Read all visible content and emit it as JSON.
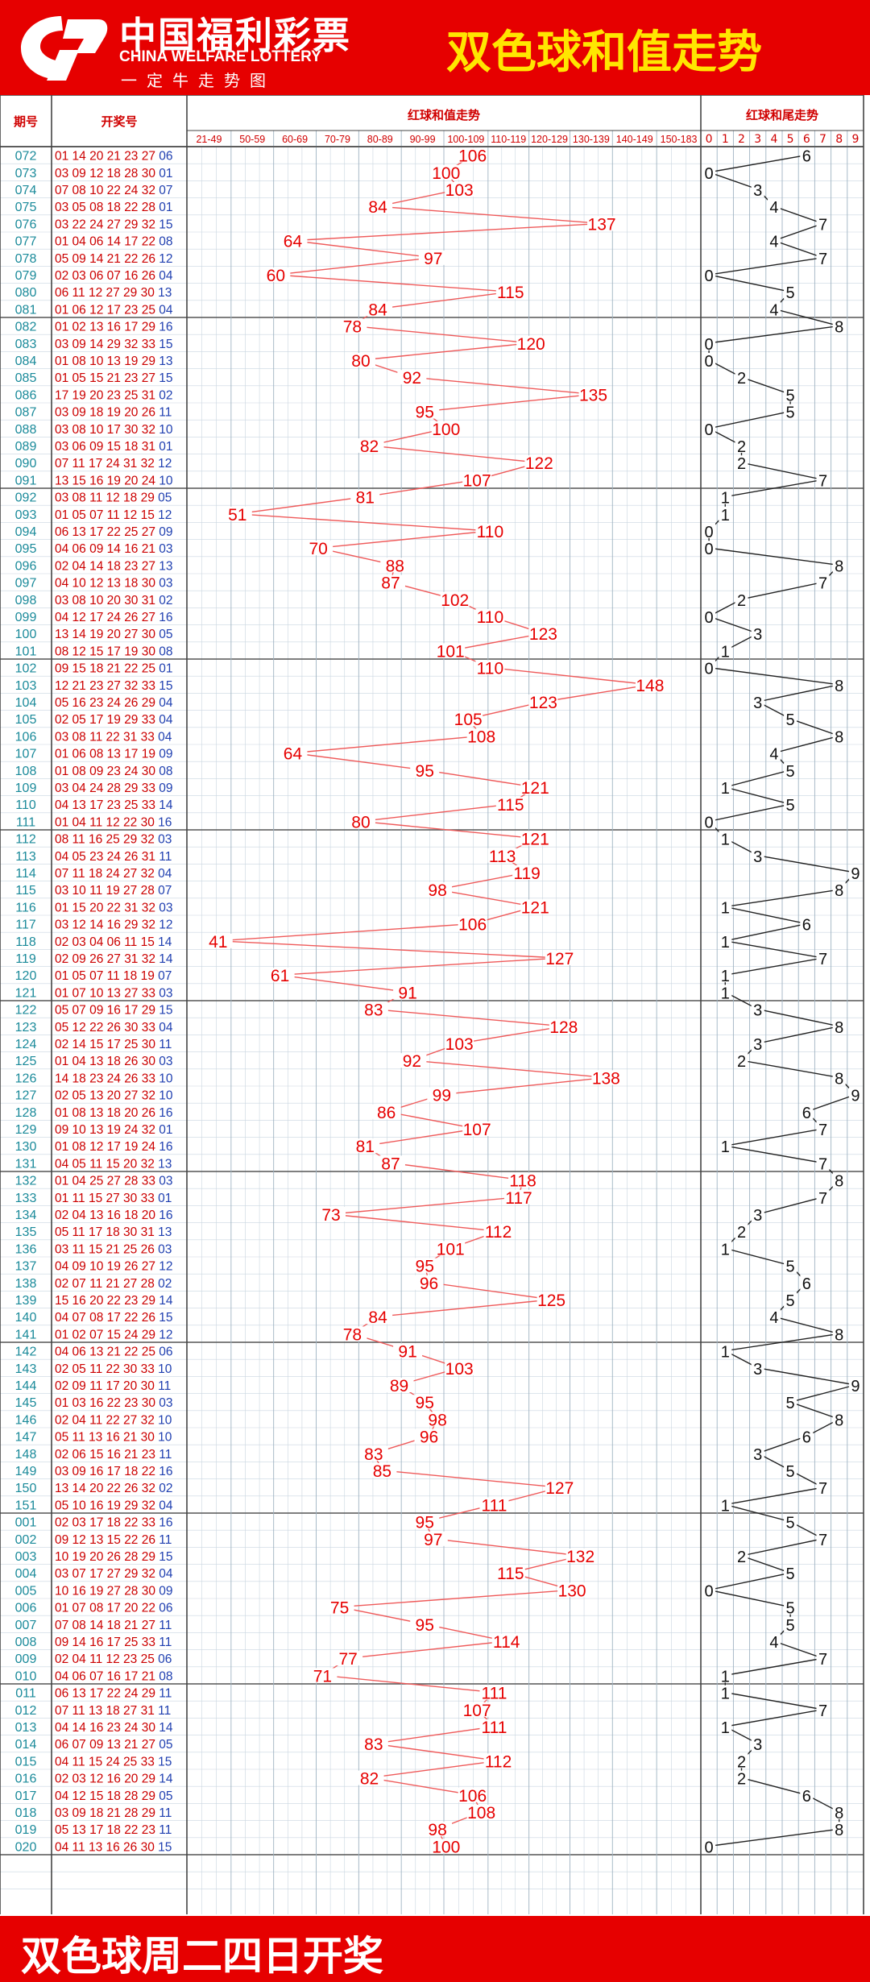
{
  "header": {
    "logo_cn": "中国福利彩票",
    "logo_en": "CHINA WELFARE LOTTERY",
    "logo_sub": "一定牛走势图",
    "title": "双色球和值走势"
  },
  "footer": {
    "text": "双色球周二四日开奖"
  },
  "table": {
    "col_period": "期号",
    "col_numbers": "开奖号",
    "col_sum": "红球和值走势",
    "col_tail": "红球和尾走势",
    "sum_ranges": [
      "21-49",
      "50-59",
      "60-69",
      "70-79",
      "80-89",
      "90-99",
      "100-109",
      "110-119",
      "120-129",
      "130-139",
      "140-149",
      "150-183"
    ],
    "tail_digits": [
      "0",
      "1",
      "2",
      "3",
      "4",
      "5",
      "6",
      "7",
      "8",
      "9"
    ]
  },
  "colors": {
    "brand_red": "#e60000",
    "title_yellow": "#ffe600",
    "period_teal": "#1a8a9a",
    "blue_ball": "#1f3fb0",
    "red_ball": "#cc0000",
    "line_red": "#ef5a5a",
    "line_black": "#222222",
    "grid": "#c9d6e0"
  },
  "chart_data": {
    "type": "line",
    "xlabel": "期号",
    "series": [
      {
        "name": "红球和值走势"
      },
      {
        "name": "红球和尾走势"
      }
    ],
    "rows": [
      {
        "p": "072",
        "r": "01 14 20 21 23 27",
        "b": "06",
        "s": 106
      },
      {
        "p": "073",
        "r": "03 09 12 18 28 30",
        "b": "01",
        "s": 100
      },
      {
        "p": "074",
        "r": "07 08 10 22 24 32",
        "b": "07",
        "s": 103
      },
      {
        "p": "075",
        "r": "03 05 08 18 22 28",
        "b": "01",
        "s": 84
      },
      {
        "p": "076",
        "r": "03 22 24 27 29 32",
        "b": "15",
        "s": 137
      },
      {
        "p": "077",
        "r": "01 04 06 14 17 22",
        "b": "08",
        "s": 64
      },
      {
        "p": "078",
        "r": "05 09 14 21 22 26",
        "b": "12",
        "s": 97
      },
      {
        "p": "079",
        "r": "02 03 06 07 16 26",
        "b": "04",
        "s": 60
      },
      {
        "p": "080",
        "r": "06 11 12 27 29 30",
        "b": "13",
        "s": 115
      },
      {
        "p": "081",
        "r": "01 06 12 17 23 25",
        "b": "04",
        "s": 84
      },
      {
        "p": "082",
        "r": "01 02 13 16 17 29",
        "b": "16",
        "s": 78
      },
      {
        "p": "083",
        "r": "03 09 14 29 32 33",
        "b": "15",
        "s": 120
      },
      {
        "p": "084",
        "r": "01 08 10 13 19 29",
        "b": "13",
        "s": 80
      },
      {
        "p": "085",
        "r": "01 05 15 21 23 27",
        "b": "15",
        "s": 92
      },
      {
        "p": "086",
        "r": "17 19 20 23 25 31",
        "b": "02",
        "s": 135
      },
      {
        "p": "087",
        "r": "03 09 18 19 20 26",
        "b": "11",
        "s": 95
      },
      {
        "p": "088",
        "r": "03 08 10 17 30 32",
        "b": "10",
        "s": 100
      },
      {
        "p": "089",
        "r": "03 06 09 15 18 31",
        "b": "01",
        "s": 82
      },
      {
        "p": "090",
        "r": "07 11 17 24 31 32",
        "b": "12",
        "s": 122
      },
      {
        "p": "091",
        "r": "13 15 16 19 20 24",
        "b": "10",
        "s": 107
      },
      {
        "p": "092",
        "r": "03 08 11 12 18 29",
        "b": "05",
        "s": 81
      },
      {
        "p": "093",
        "r": "01 05 07 11 12 15",
        "b": "12",
        "s": 51
      },
      {
        "p": "094",
        "r": "06 13 17 22 25 27",
        "b": "09",
        "s": 110
      },
      {
        "p": "095",
        "r": "04 06 09 14 16 21",
        "b": "03",
        "s": 70
      },
      {
        "p": "096",
        "r": "02 04 14 18 23 27",
        "b": "13",
        "s": 88
      },
      {
        "p": "097",
        "r": "04 10 12 13 18 30",
        "b": "03",
        "s": 87
      },
      {
        "p": "098",
        "r": "03 08 10 20 30 31",
        "b": "02",
        "s": 102
      },
      {
        "p": "099",
        "r": "04 12 17 24 26 27",
        "b": "16",
        "s": 110
      },
      {
        "p": "100",
        "r": "13 14 19 20 27 30",
        "b": "05",
        "s": 123
      },
      {
        "p": "101",
        "r": "08 12 15 17 19 30",
        "b": "08",
        "s": 101
      },
      {
        "p": "102",
        "r": "09 15 18 21 22 25",
        "b": "01",
        "s": 110
      },
      {
        "p": "103",
        "r": "12 21 23 27 32 33",
        "b": "15",
        "s": 148
      },
      {
        "p": "104",
        "r": "05 16 23 24 26 29",
        "b": "04",
        "s": 123
      },
      {
        "p": "105",
        "r": "02 05 17 19 29 33",
        "b": "04",
        "s": 105
      },
      {
        "p": "106",
        "r": "03 08 11 22 31 33",
        "b": "04",
        "s": 108
      },
      {
        "p": "107",
        "r": "01 06 08 13 17 19",
        "b": "09",
        "s": 64
      },
      {
        "p": "108",
        "r": "01 08 09 23 24 30",
        "b": "08",
        "s": 95
      },
      {
        "p": "109",
        "r": "03 04 24 28 29 33",
        "b": "09",
        "s": 121
      },
      {
        "p": "110",
        "r": "04 13 17 23 25 33",
        "b": "14",
        "s": 115
      },
      {
        "p": "111",
        "r": "01 04 11 12 22 30",
        "b": "16",
        "s": 80
      },
      {
        "p": "112",
        "r": "08 11 16 25 29 32",
        "b": "03",
        "s": 121
      },
      {
        "p": "113",
        "r": "04 05 23 24 26 31",
        "b": "11",
        "s": 113
      },
      {
        "p": "114",
        "r": "07 11 18 24 27 32",
        "b": "04",
        "s": 119
      },
      {
        "p": "115",
        "r": "03 10 11 19 27 28",
        "b": "07",
        "s": 98
      },
      {
        "p": "116",
        "r": "01 15 20 22 31 32",
        "b": "03",
        "s": 121
      },
      {
        "p": "117",
        "r": "03 12 14 16 29 32",
        "b": "12",
        "s": 106
      },
      {
        "p": "118",
        "r": "02 03 04 06 11 15",
        "b": "14",
        "s": 41
      },
      {
        "p": "119",
        "r": "02 09 26 27 31 32",
        "b": "14",
        "s": 127
      },
      {
        "p": "120",
        "r": "01 05 07 11 18 19",
        "b": "07",
        "s": 61
      },
      {
        "p": "121",
        "r": "01 07 10 13 27 33",
        "b": "03",
        "s": 91
      },
      {
        "p": "122",
        "r": "05 07 09 16 17 29",
        "b": "15",
        "s": 83
      },
      {
        "p": "123",
        "r": "05 12 22 26 30 33",
        "b": "04",
        "s": 128
      },
      {
        "p": "124",
        "r": "02 14 15 17 25 30",
        "b": "11",
        "s": 103
      },
      {
        "p": "125",
        "r": "01 04 13 18 26 30",
        "b": "03",
        "s": 92
      },
      {
        "p": "126",
        "r": "14 18 23 24 26 33",
        "b": "10",
        "s": 138
      },
      {
        "p": "127",
        "r": "02 05 13 20 27 32",
        "b": "10",
        "s": 99
      },
      {
        "p": "128",
        "r": "01 08 13 18 20 26",
        "b": "16",
        "s": 86
      },
      {
        "p": "129",
        "r": "09 10 13 19 24 32",
        "b": "01",
        "s": 107
      },
      {
        "p": "130",
        "r": "01 08 12 17 19 24",
        "b": "16",
        "s": 81
      },
      {
        "p": "131",
        "r": "04 05 11 15 20 32",
        "b": "13",
        "s": 87
      },
      {
        "p": "132",
        "r": "01 04 25 27 28 33",
        "b": "03",
        "s": 118
      },
      {
        "p": "133",
        "r": "01 11 15 27 30 33",
        "b": "01",
        "s": 117
      },
      {
        "p": "134",
        "r": "02 04 13 16 18 20",
        "b": "16",
        "s": 73
      },
      {
        "p": "135",
        "r": "05 11 17 18 30 31",
        "b": "13",
        "s": 112
      },
      {
        "p": "136",
        "r": "03 11 15 21 25 26",
        "b": "03",
        "s": 101
      },
      {
        "p": "137",
        "r": "04 09 10 19 26 27",
        "b": "12",
        "s": 95
      },
      {
        "p": "138",
        "r": "02 07 11 21 27 28",
        "b": "02",
        "s": 96
      },
      {
        "p": "139",
        "r": "15 16 20 22 23 29",
        "b": "14",
        "s": 125
      },
      {
        "p": "140",
        "r": "04 07 08 17 22 26",
        "b": "15",
        "s": 84
      },
      {
        "p": "141",
        "r": "01 02 07 15 24 29",
        "b": "12",
        "s": 78
      },
      {
        "p": "142",
        "r": "04 06 13 21 22 25",
        "b": "06",
        "s": 91
      },
      {
        "p": "143",
        "r": "02 05 11 22 30 33",
        "b": "10",
        "s": 103
      },
      {
        "p": "144",
        "r": "02 09 11 17 20 30",
        "b": "11",
        "s": 89
      },
      {
        "p": "145",
        "r": "01 03 16 22 23 30",
        "b": "03",
        "s": 95
      },
      {
        "p": "146",
        "r": "02 04 11 22 27 32",
        "b": "10",
        "s": 98
      },
      {
        "p": "147",
        "r": "05 11 13 16 21 30",
        "b": "10",
        "s": 96
      },
      {
        "p": "148",
        "r": "02 06 15 16 21 23",
        "b": "11",
        "s": 83
      },
      {
        "p": "149",
        "r": "03 09 16 17 18 22",
        "b": "16",
        "s": 85
      },
      {
        "p": "150",
        "r": "13 14 20 22 26 32",
        "b": "02",
        "s": 127
      },
      {
        "p": "151",
        "r": "05 10 16 19 29 32",
        "b": "04",
        "s": 111
      },
      {
        "p": "001",
        "r": "02 03 17 18 22 33",
        "b": "16",
        "s": 95
      },
      {
        "p": "002",
        "r": "09 12 13 15 22 26",
        "b": "11",
        "s": 97
      },
      {
        "p": "003",
        "r": "10 19 20 26 28 29",
        "b": "15",
        "s": 132
      },
      {
        "p": "004",
        "r": "03 07 17 27 29 32",
        "b": "04",
        "s": 115
      },
      {
        "p": "005",
        "r": "10 16 19 27 28 30",
        "b": "09",
        "s": 130
      },
      {
        "p": "006",
        "r": "01 07 08 17 20 22",
        "b": "06",
        "s": 75
      },
      {
        "p": "007",
        "r": "07 08 14 18 21 27",
        "b": "11",
        "s": 95
      },
      {
        "p": "008",
        "r": "09 14 16 17 25 33",
        "b": "11",
        "s": 114
      },
      {
        "p": "009",
        "r": "02 04 11 12 23 25",
        "b": "06",
        "s": 77
      },
      {
        "p": "010",
        "r": "04 06 07 16 17 21",
        "b": "08",
        "s": 71
      },
      {
        "p": "011",
        "r": "06 13 17 22 24 29",
        "b": "11",
        "s": 111
      },
      {
        "p": "012",
        "r": "07 11 13 18 27 31",
        "b": "11",
        "s": 107
      },
      {
        "p": "013",
        "r": "04 14 16 23 24 30",
        "b": "14",
        "s": 111
      },
      {
        "p": "014",
        "r": "06 07 09 13 21 27",
        "b": "05",
        "s": 83
      },
      {
        "p": "015",
        "r": "04 11 15 24 25 33",
        "b": "15",
        "s": 112
      },
      {
        "p": "016",
        "r": "02 03 12 16 20 29",
        "b": "14",
        "s": 82
      },
      {
        "p": "017",
        "r": "04 12 15 18 28 29",
        "b": "05",
        "s": 106
      },
      {
        "p": "018",
        "r": "03 09 18 21 28 29",
        "b": "11",
        "s": 108
      },
      {
        "p": "019",
        "r": "05 13 17 18 22 23",
        "b": "11",
        "s": 98
      },
      {
        "p": "020",
        "r": "04 11 13 16 26 30",
        "b": "15",
        "s": 100
      }
    ]
  }
}
